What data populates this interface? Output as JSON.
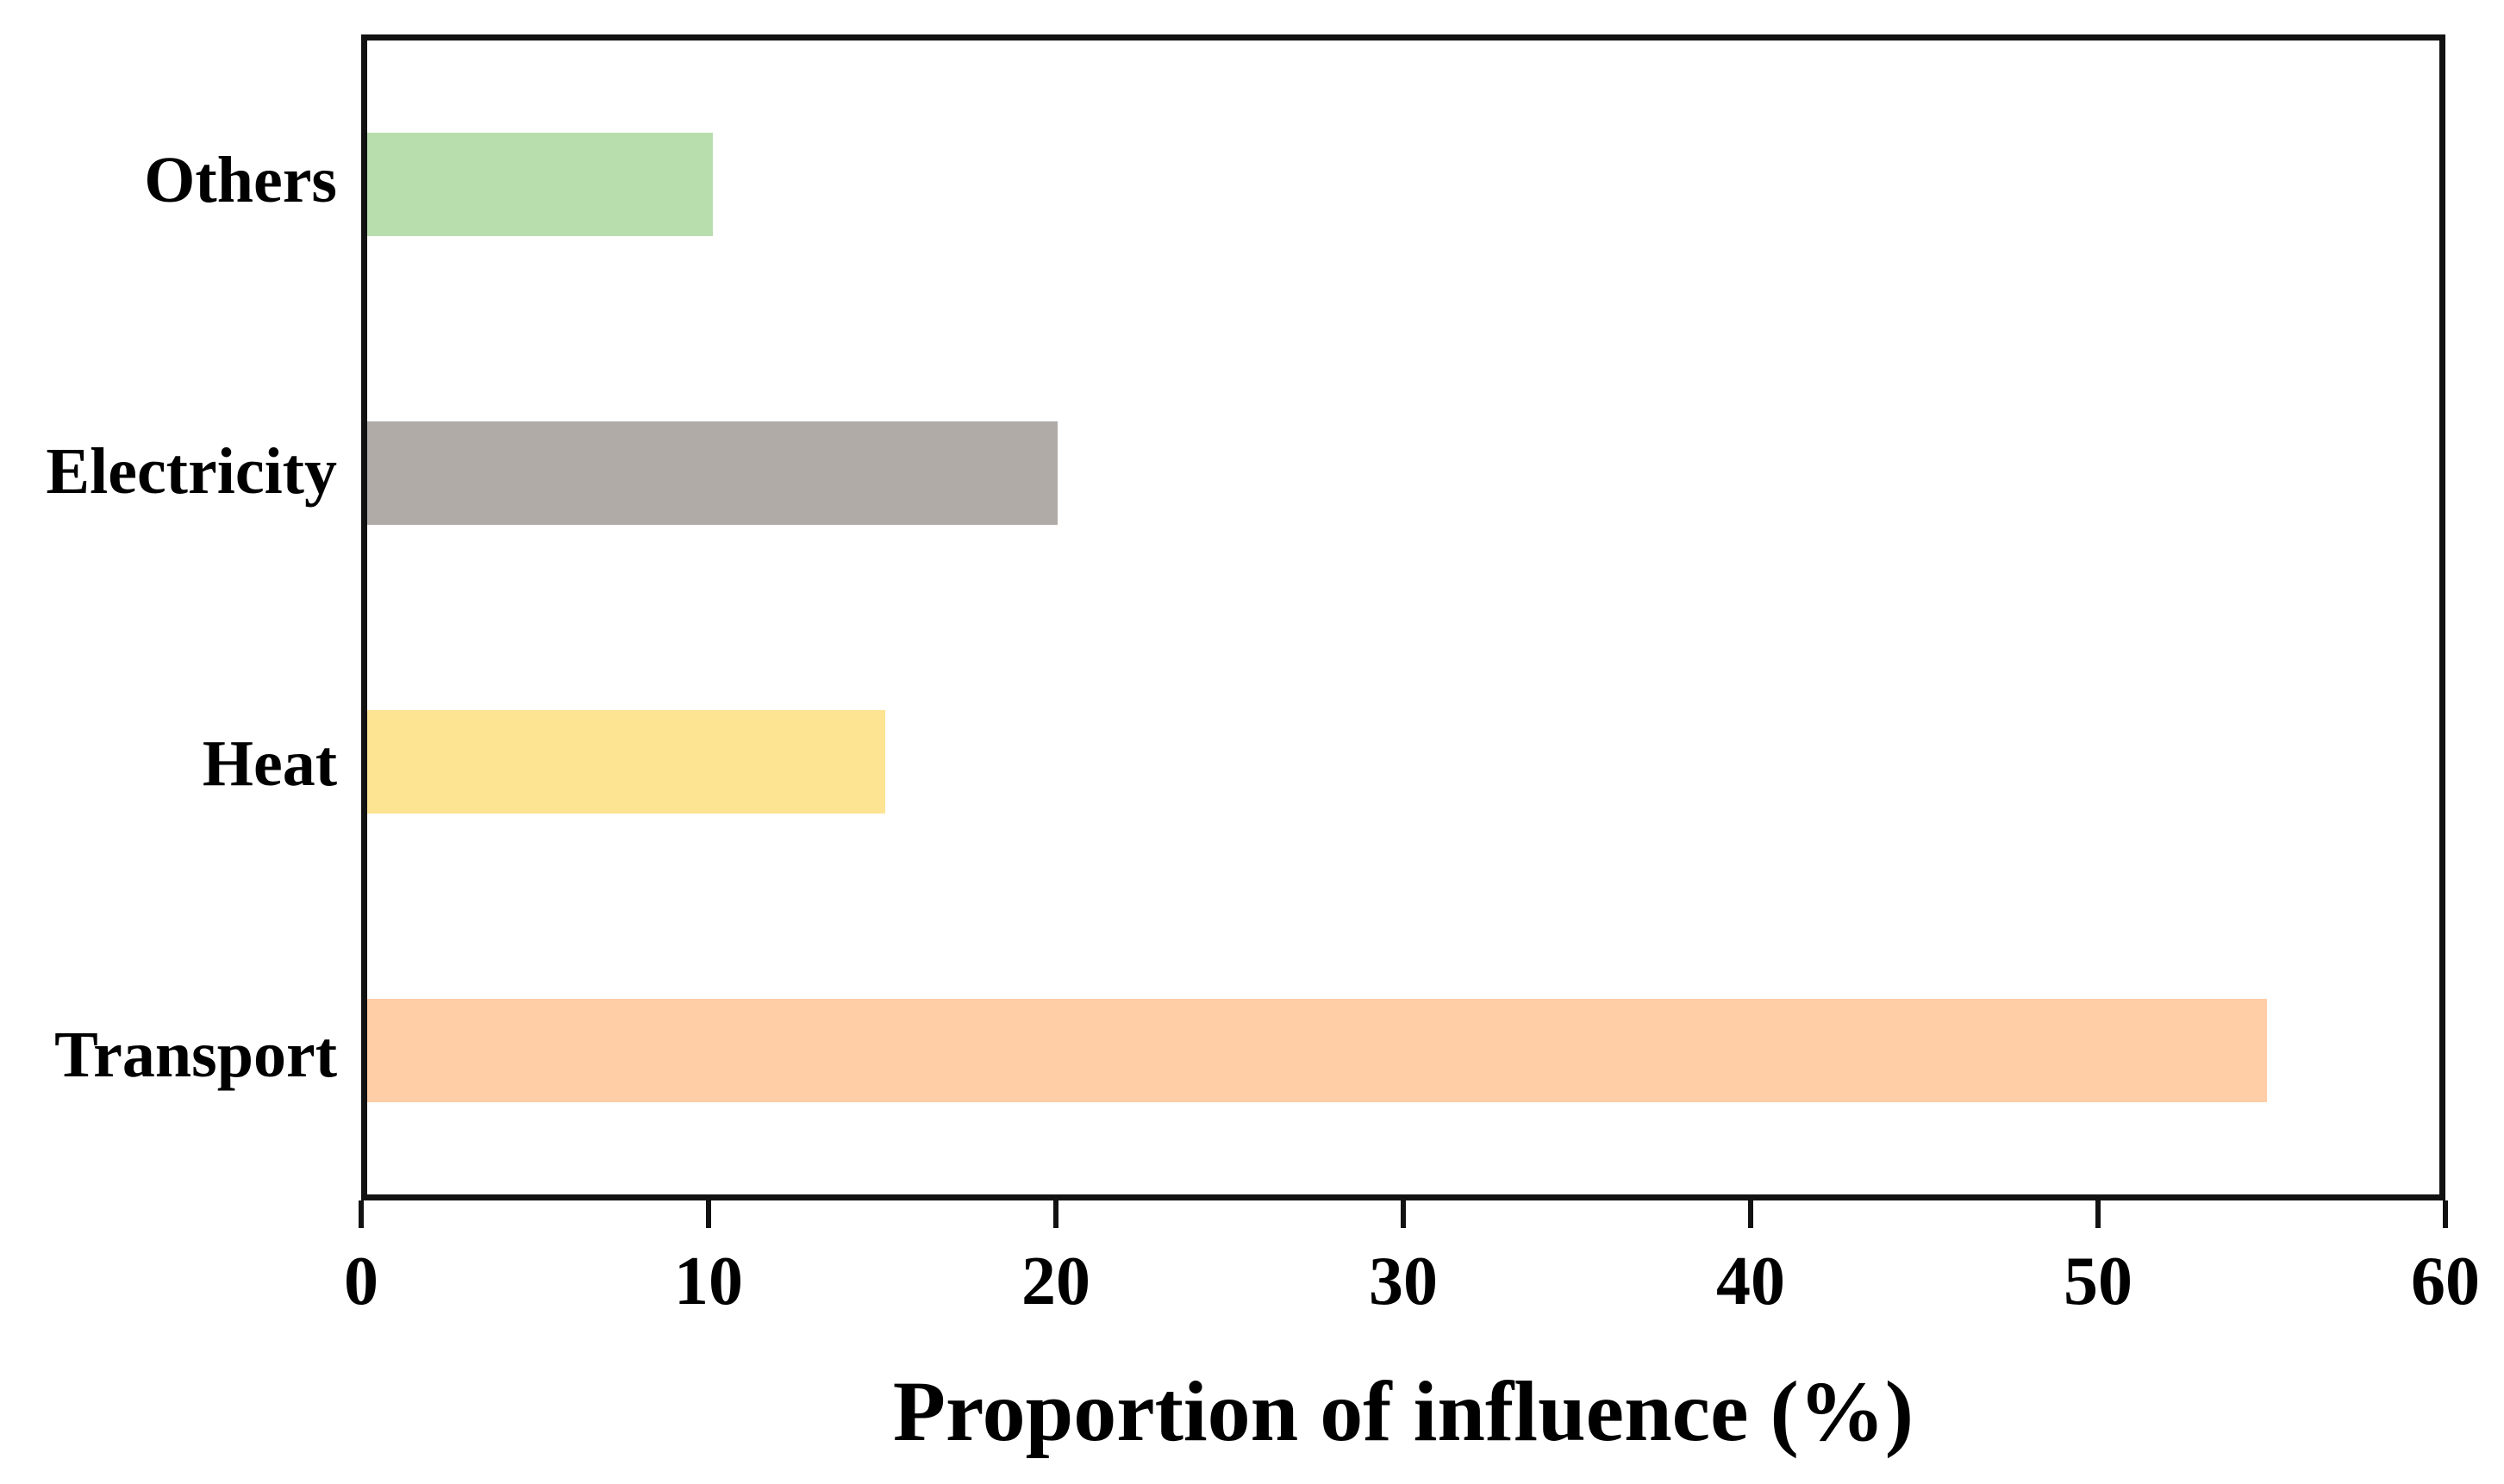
{
  "chart_data": {
    "type": "bar",
    "orientation": "horizontal",
    "title": "",
    "xlabel": "Proportion of influence (%)",
    "ylabel": "",
    "categories": [
      "Others",
      "Electricity",
      "Heat",
      "Transport"
    ],
    "values": [
      10,
      20,
      15,
      55
    ],
    "colors": [
      "#b8deae",
      "#b1aba8",
      "#fde492",
      "#ffcda6"
    ],
    "xlim": [
      0,
      60
    ],
    "x_ticks": [
      0,
      10,
      20,
      30,
      40,
      50,
      60
    ],
    "grid": false,
    "legend": false,
    "frame_color": "#121212",
    "text_color": "#000000",
    "background_color": "#ffffff"
  }
}
